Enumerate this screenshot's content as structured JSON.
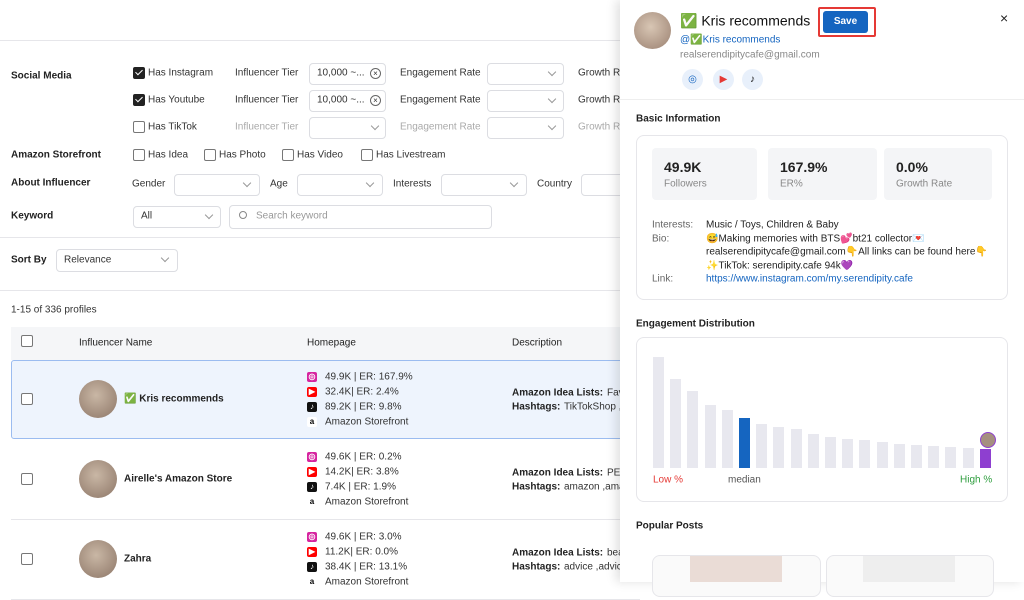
{
  "filters": {
    "social_media": {
      "label": "Social Media",
      "rows": [
        {
          "option": "Has Instagram",
          "checked": true,
          "tier_label": "Influencer Tier",
          "tier_value": "10,000 ~...",
          "engagement_label": "Engagement Rate",
          "growth_label": "Growth Rate"
        },
        {
          "option": "Has Youtube",
          "checked": true,
          "tier_label": "Influencer Tier",
          "tier_value": "10,000 ~...",
          "engagement_label": "Engagement Rate",
          "growth_label": "Growth Rate"
        },
        {
          "option": "Has TikTok",
          "checked": false,
          "tier_label": "Influencer Tier",
          "engagement_label": "Engagement Rate",
          "growth_label": "Growth Rate"
        }
      ]
    },
    "amazon_storefront": {
      "label": "Amazon Storefront",
      "options": [
        "Has Idea",
        "Has Photo",
        "Has Video",
        "Has Livestream"
      ]
    },
    "about_influencer": {
      "label": "About Influencer",
      "fields": [
        "Gender",
        "Age",
        "Interests",
        "Country"
      ]
    },
    "keyword": {
      "label": "Keyword",
      "scope": "All",
      "placeholder": "Search keyword"
    },
    "sort": {
      "label": "Sort By",
      "value": "Relevance"
    }
  },
  "results": {
    "count": "1-15 of 336 profiles",
    "columns": [
      "Influencer Name",
      "Homepage",
      "Description"
    ],
    "rows": [
      {
        "name": "✅ Kris recommends",
        "homepage": [
          "49.9K | ER: 167.9%",
          "32.4K| ER: 2.4%",
          "89.2K | ER: 9.8%",
          "Amazon Storefront"
        ],
        "description": [
          {
            "label": "Amazon Idea Lists:",
            "text": "Favor"
          },
          {
            "label": "Hashtags:",
            "text": "TikTokShop ,ap"
          }
        ]
      },
      {
        "name": "Airelle's Amazon Store",
        "homepage": [
          "49.6K | ER: 0.2%",
          "14.2K| ER: 3.8%",
          "7.4K | ER: 1.9%",
          "Amazon Storefront"
        ],
        "description": [
          {
            "label": "Amazon Idea Lists:",
            "text": "PETS"
          },
          {
            "label": "Hashtags:",
            "text": "amazon ,amaz"
          }
        ]
      },
      {
        "name": "Zahra",
        "homepage": [
          "49.6K | ER: 3.0%",
          "11.2K| ER: 0.0%",
          "38.4K | ER: 13.1%",
          "Amazon Storefront"
        ],
        "description": [
          {
            "label": "Amazon Idea Lists:",
            "text": "beaut"
          },
          {
            "label": "Hashtags:",
            "text": "advice ,advice"
          }
        ]
      }
    ]
  },
  "panel": {
    "name": "✅ Kris recommends",
    "save": "Save",
    "close": "×",
    "handle": "@✅Kris recommends",
    "email": "realserendipitycafe@gmail.com",
    "basic_title": "Basic Information",
    "stats": [
      {
        "value": "49.9K",
        "label": "Followers"
      },
      {
        "value": "167.9%",
        "label": "ER%"
      },
      {
        "value": "0.0%",
        "label": "Growth Rate"
      }
    ],
    "details": [
      {
        "label": "Interests:",
        "lines": [
          "Music / Toys, Children & Baby"
        ]
      },
      {
        "label": "Bio:",
        "lines": [
          "😅Making memories with BTS💕bt21 collector💌",
          "realserendipitycafe@gmail.com👇All links can be found here👇",
          "✨TikTok: serendipity.cafe 94k💜"
        ]
      },
      {
        "label": "Link:",
        "lines": [
          "https://www.instagram.com/my.serendipity.cafe"
        ]
      }
    ],
    "engagement": {
      "title": "Engagement Distribution",
      "low": "Low %",
      "median": "median",
      "high": "High %",
      "values": [
        100,
        80,
        69,
        57,
        52,
        45,
        40,
        37,
        35,
        31,
        28,
        26,
        25,
        23,
        22,
        21,
        20,
        19,
        18,
        17
      ],
      "colors": [
        "#e8e8ef",
        "#e8e8ef",
        "#e8e8ef",
        "#e8e8ef",
        "#e8e8ef",
        "#1565c0",
        "#e8e8ef",
        "#e8e8ef",
        "#e8e8ef",
        "#e8e8ef",
        "#e8e8ef",
        "#e8e8ef",
        "#e8e8ef",
        "#e8e8ef",
        "#e8e8ef",
        "#e8e8ef",
        "#e8e8ef",
        "#e8e8ef",
        "#e8e8ef",
        "#8e3fd0"
      ],
      "ylim": [
        0,
        100
      ]
    },
    "posts_title": "Popular Posts"
  }
}
